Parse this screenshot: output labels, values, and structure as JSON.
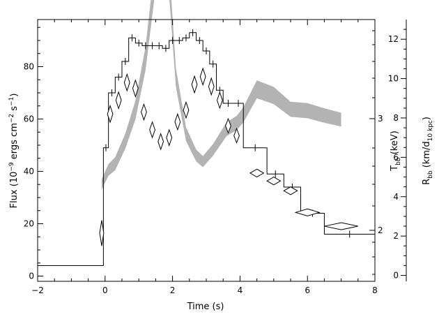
{
  "chart_data": {
    "type": "line",
    "title": "",
    "xlabel": "Time (s)",
    "ylabel_left": [
      "Flux (10",
      "−9",
      " ergs cm",
      "−2",
      " s",
      "−1",
      ")"
    ],
    "ylabel_mid": [
      "T",
      "bb",
      " (keV)"
    ],
    "ylabel_right": [
      "R",
      "bb",
      " (km/d",
      "10 kpc",
      ")"
    ],
    "xlim": [
      -2,
      8
    ],
    "ylim_flux": [
      -2,
      98
    ],
    "ylim_radius": [
      -0.3,
      13.0
    ],
    "tb_scale": "log",
    "x_ticks": [
      "−2",
      "0",
      "2",
      "4",
      "6",
      "8"
    ],
    "flux_ticks": [
      "0",
      "20",
      "40",
      "60",
      "80"
    ],
    "tb_ticks": [
      "2",
      "3"
    ],
    "radius_ticks": [
      "0",
      "2",
      "4",
      "6",
      "8",
      "10",
      "12"
    ],
    "flux_histogram": {
      "name": "Flux",
      "edges": [
        -2.0,
        -0.05,
        0.1,
        0.3,
        0.5,
        0.7,
        0.9,
        1.1,
        1.3,
        1.5,
        1.7,
        1.9,
        2.1,
        2.3,
        2.5,
        2.7,
        2.9,
        3.1,
        3.3,
        3.5,
        3.8,
        4.1,
        4.8,
        5.3,
        5.8,
        6.5,
        8.0
      ],
      "values": [
        4,
        49,
        70,
        76,
        82,
        91,
        89,
        88,
        88,
        88,
        87,
        90,
        90,
        91,
        93,
        90,
        86,
        81,
        71,
        66,
        66,
        49,
        39,
        34,
        24,
        16
      ]
    },
    "temperature_band": {
      "name": "T_bb",
      "x": [
        -0.1,
        0.1,
        0.3,
        0.6,
        0.9,
        1.2,
        1.6,
        1.9,
        2.1,
        2.4,
        2.7,
        2.9,
        3.2,
        3.6,
        3.9,
        4.1,
        4.5,
        5.0,
        5.5,
        6.0,
        6.5,
        7.0
      ],
      "y": [
        1.55,
        1.76,
        1.85,
        2.18,
        2.63,
        3.38,
        5.05,
        4.5,
        3.1,
        2.28,
        1.97,
        1.88,
        2.05,
        2.35,
        2.44,
        2.56,
        2.93,
        2.84,
        2.64,
        2.62,
        2.55,
        2.49
      ],
      "band_width": [
        0.15,
        0.17,
        0.19,
        0.22,
        0.27,
        0.34,
        0.5,
        0.44,
        0.27,
        0.2,
        0.17,
        0.16,
        0.17,
        0.2,
        0.21,
        0.22,
        0.26,
        0.25,
        0.22,
        0.22,
        0.21,
        0.2
      ],
      "color": "#b3b3b3"
    },
    "radius_points": {
      "name": "R_bb",
      "x": [
        -0.1,
        0.15,
        0.4,
        0.65,
        0.9,
        1.15,
        1.4,
        1.65,
        1.9,
        2.15,
        2.4,
        2.65,
        2.9,
        3.15,
        3.4,
        3.65,
        3.9,
        4.5,
        5.0,
        5.5,
        6.0,
        7.0
      ],
      "y": [
        2.15,
        8.2,
        8.9,
        9.8,
        9.5,
        8.3,
        7.4,
        6.8,
        7.0,
        7.8,
        8.4,
        9.7,
        10.1,
        9.6,
        8.9,
        7.6,
        7.1,
        5.2,
        4.8,
        4.3,
        3.2,
        2.5
      ],
      "x_err": [
        0.06,
        0.08,
        0.08,
        0.08,
        0.08,
        0.08,
        0.08,
        0.08,
        0.08,
        0.08,
        0.08,
        0.08,
        0.08,
        0.08,
        0.08,
        0.08,
        0.08,
        0.2,
        0.2,
        0.2,
        0.35,
        0.5
      ],
      "y_err": [
        0.65,
        0.42,
        0.42,
        0.42,
        0.42,
        0.4,
        0.4,
        0.4,
        0.4,
        0.4,
        0.4,
        0.42,
        0.42,
        0.42,
        0.4,
        0.36,
        0.36,
        0.2,
        0.2,
        0.2,
        0.18,
        0.18
      ]
    }
  }
}
